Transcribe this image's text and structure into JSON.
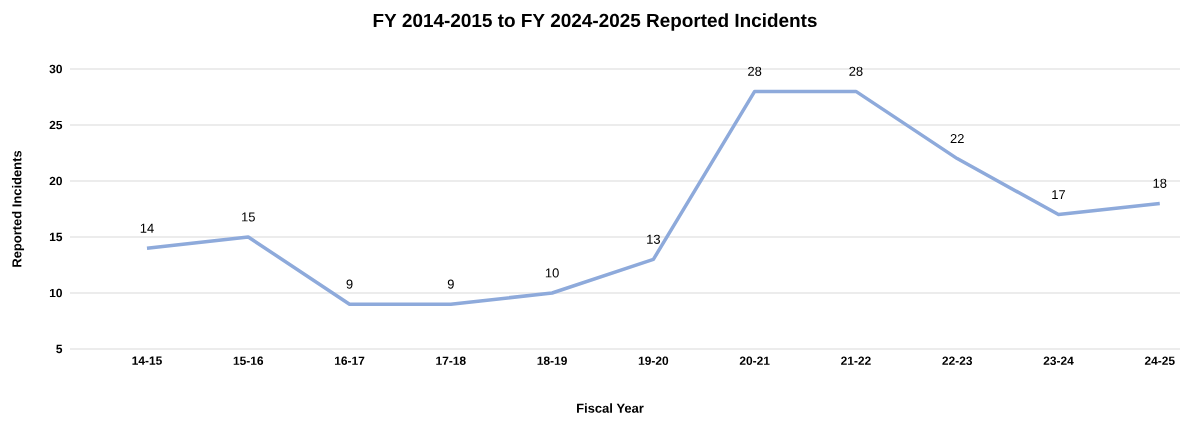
{
  "chart_data": {
    "type": "line",
    "title": "FY 2014-2015 to FY 2024-2025 Reported Incidents",
    "xlabel": "Fiscal Year",
    "ylabel": "Reported Incidents",
    "categories": [
      "14-15",
      "15-16",
      "16-17",
      "17-18",
      "18-19",
      "19-20",
      "20-21",
      "21-22",
      "22-23",
      "23-24",
      "24-25"
    ],
    "values": [
      14,
      15,
      9,
      9,
      10,
      13,
      28,
      28,
      22,
      17,
      18
    ],
    "color": "#8eaadb",
    "ylim": [
      5,
      30
    ],
    "yticks": [
      5,
      10,
      15,
      20,
      25,
      30
    ],
    "grid": "y",
    "data_labels": true
  }
}
